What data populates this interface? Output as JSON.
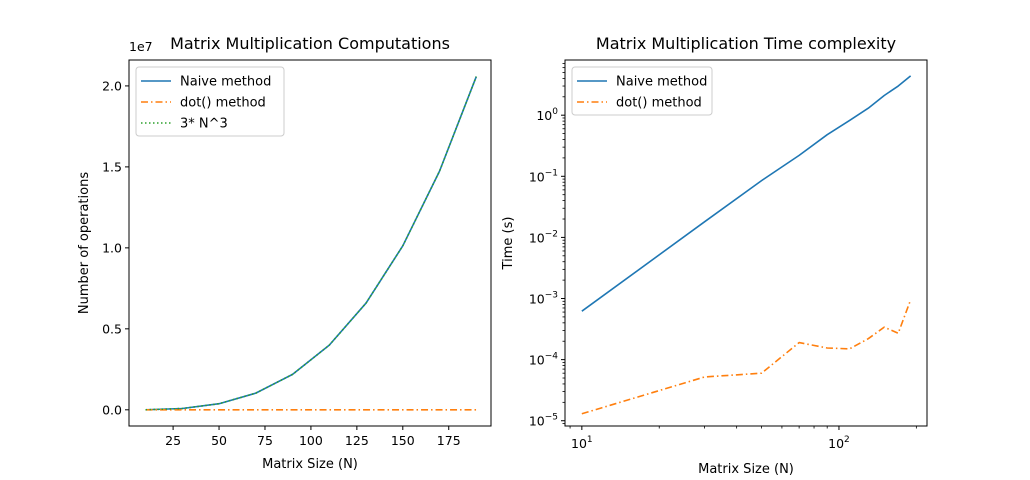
{
  "chart_data": [
    {
      "type": "line",
      "title": "Matrix Multiplication Computations",
      "xlabel": "Matrix Size (N)",
      "ylabel": "Number of operations",
      "offset_label": "1e7",
      "xlim": [
        1,
        198
      ],
      "ylim": [
        -1000000,
        21600000
      ],
      "xticks": [
        25,
        50,
        75,
        100,
        125,
        150,
        175
      ],
      "xtick_labels": [
        "25",
        "50",
        "75",
        "100",
        "125",
        "150",
        "175"
      ],
      "yticks": [
        0,
        5000000,
        10000000,
        15000000,
        20000000
      ],
      "ytick_labels": [
        "0.0",
        "0.5",
        "1.0",
        "1.5",
        "2.0"
      ],
      "x": [
        10,
        30,
        50,
        70,
        90,
        110,
        130,
        150,
        170,
        190
      ],
      "legend_position": "upper-left",
      "series": [
        {
          "name": "Naive method",
          "color": "#1f77b4",
          "style": "solid",
          "values": [
            3000,
            81000,
            375000,
            1029000,
            2187000,
            3993000,
            6591000,
            10125000,
            14739000,
            20577000
          ]
        },
        {
          "name": "dot() method",
          "color": "#ff7f0e",
          "style": "dashdot",
          "values": [
            0,
            0,
            0,
            0,
            0,
            0,
            0,
            0,
            0,
            0
          ]
        },
        {
          "name": "3* N^3",
          "color": "#2ca02c",
          "style": "dotted",
          "values": [
            3000,
            81000,
            375000,
            1029000,
            2187000,
            3993000,
            6591000,
            10125000,
            14739000,
            20577000
          ]
        }
      ]
    },
    {
      "type": "line",
      "title": "Matrix Multiplication Time complexity",
      "xlabel": "Matrix Size (N)",
      "ylabel": "Time (s)",
      "xscale": "log",
      "yscale": "log",
      "xlim": [
        8.6,
        220
      ],
      "ylim": [
        8.2e-06,
        8
      ],
      "xticks": [
        10,
        100
      ],
      "xtick_labels": [
        {
          "base": "10",
          "exp": "1"
        },
        {
          "base": "10",
          "exp": "2"
        }
      ],
      "yticks": [
        1e-05,
        0.0001,
        0.001,
        0.01,
        0.1,
        1
      ],
      "ytick_labels": [
        {
          "base": "10",
          "exp": "−5"
        },
        {
          "base": "10",
          "exp": "−4"
        },
        {
          "base": "10",
          "exp": "−3"
        },
        {
          "base": "10",
          "exp": "−2"
        },
        {
          "base": "10",
          "exp": "−1"
        },
        {
          "base": "10",
          "exp": "0"
        }
      ],
      "legend_position": "upper-left",
      "series": [
        {
          "name": "Naive method",
          "color": "#1f77b4",
          "style": "solid",
          "x": [
            10,
            30,
            50,
            70,
            90,
            110,
            130,
            150,
            170,
            190
          ],
          "values": [
            0.00062,
            0.018,
            0.085,
            0.22,
            0.48,
            0.82,
            1.3,
            2.1,
            3.0,
            4.4
          ]
        },
        {
          "name": "dot() method",
          "color": "#ff7f0e",
          "style": "dashdot",
          "x": [
            10,
            30,
            50,
            70,
            90,
            110,
            130,
            150,
            170,
            190
          ],
          "values": [
            1.3e-05,
            5.2e-05,
            6e-05,
            0.00019,
            0.000155,
            0.00015,
            0.00022,
            0.00034,
            0.00027,
            0.00095
          ]
        }
      ]
    }
  ]
}
